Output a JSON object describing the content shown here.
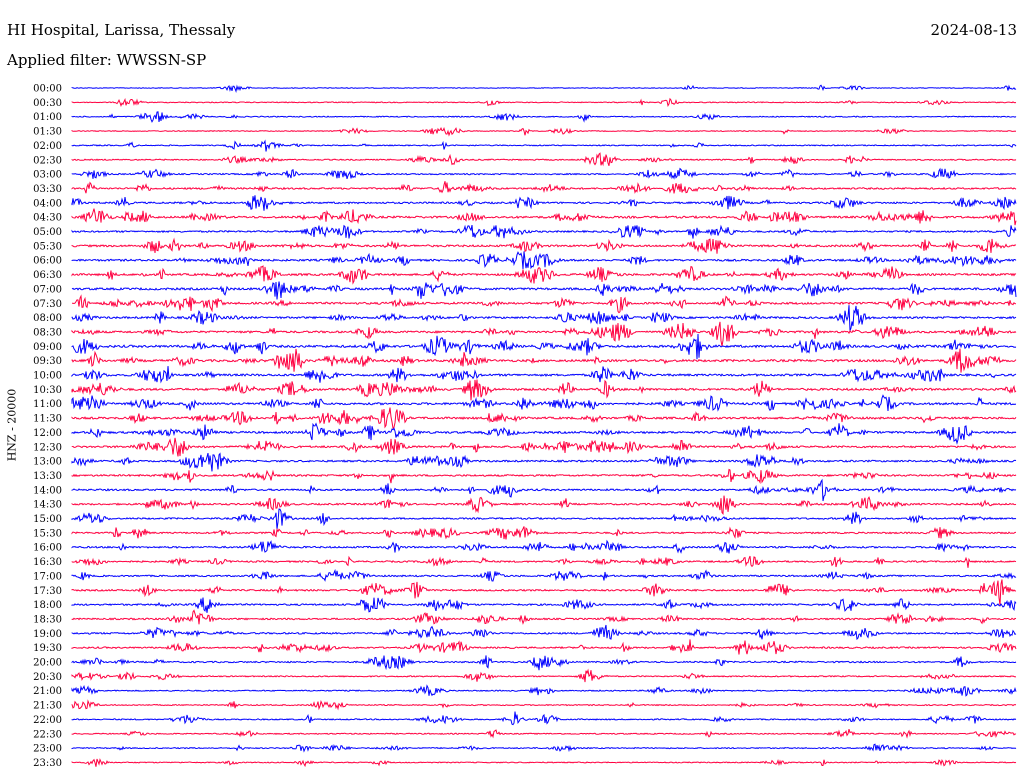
{
  "header": {
    "station": "HI Hospital, Larissa, Thessaly",
    "date": "2024-08-13",
    "filter": "Applied filter: WWSSN-SP"
  },
  "chart_data": {
    "type": "line",
    "title": "HI Hospital, Larissa, Thessaly",
    "subtitle": "Applied filter: WWSSN-SP",
    "date": "2024-08-13",
    "ylabel": "HNZ - 20000",
    "row_labels": [
      "00:00",
      "00:30",
      "01:00",
      "01:30",
      "02:00",
      "02:30",
      "03:00",
      "03:30",
      "04:00",
      "04:30",
      "05:00",
      "05:30",
      "06:00",
      "06:30",
      "07:00",
      "07:30",
      "08:00",
      "08:30",
      "09:00",
      "09:30",
      "10:00",
      "10:30",
      "11:00",
      "11:30",
      "12:00",
      "12:30",
      "13:00",
      "13:30",
      "14:00",
      "14:30",
      "15:00",
      "15:30",
      "16:00",
      "16:30",
      "17:00",
      "17:30",
      "18:00",
      "18:30",
      "19:00",
      "19:30",
      "20:00",
      "20:30",
      "21:00",
      "21:30",
      "22:00",
      "22:30",
      "23:00",
      "23:30"
    ],
    "row_colors": [
      "#0000ff",
      "#ff0040"
    ],
    "row_activity": [
      0.05,
      0.15,
      0.2,
      0.12,
      0.25,
      0.3,
      0.35,
      0.55,
      0.6,
      0.75,
      0.55,
      0.7,
      0.7,
      0.75,
      0.8,
      0.75,
      0.7,
      0.75,
      0.9,
      0.85,
      0.8,
      0.8,
      0.8,
      0.75,
      0.75,
      0.7,
      0.6,
      0.6,
      0.6,
      0.55,
      0.5,
      0.5,
      0.55,
      0.5,
      0.5,
      0.55,
      0.55,
      0.5,
      0.55,
      0.5,
      0.45,
      0.3,
      0.3,
      0.25,
      0.3,
      0.25,
      0.25,
      0.2
    ],
    "grid": false,
    "legend": "none"
  }
}
